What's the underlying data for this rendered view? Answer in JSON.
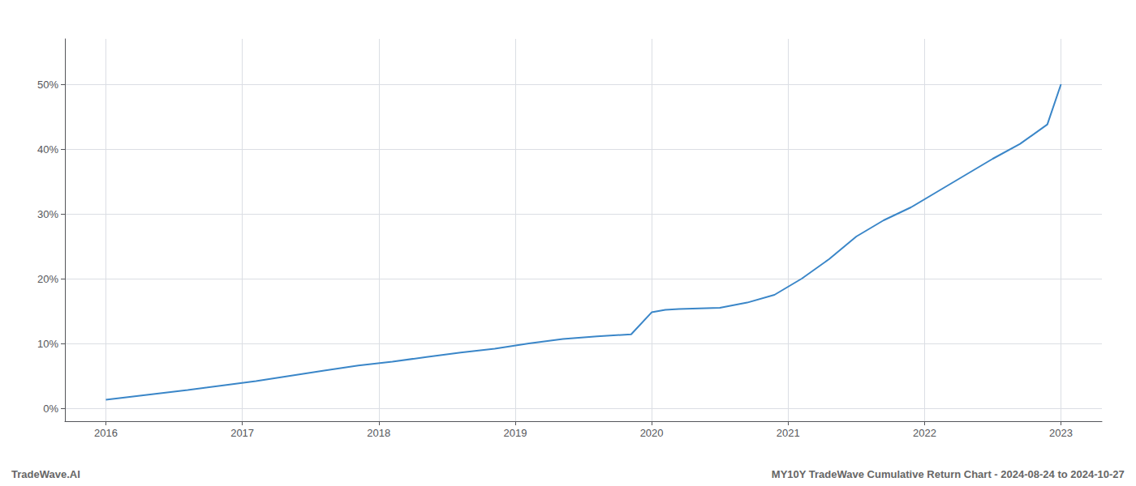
{
  "chart_data": {
    "type": "line",
    "x": [
      2016.0,
      2016.15,
      2016.35,
      2016.6,
      2016.85,
      2017.1,
      2017.35,
      2017.6,
      2017.85,
      2018.1,
      2018.35,
      2018.6,
      2018.85,
      2019.1,
      2019.35,
      2019.6,
      2019.85,
      2020.0,
      2020.1,
      2020.2,
      2020.35,
      2020.5,
      2020.7,
      2020.9,
      2021.1,
      2021.3,
      2021.5,
      2021.7,
      2021.9,
      2022.1,
      2022.3,
      2022.5,
      2022.7,
      2022.9,
      2023.0
    ],
    "values": [
      0.013,
      0.017,
      0.022,
      0.028,
      0.035,
      0.042,
      0.05,
      0.058,
      0.066,
      0.072,
      0.079,
      0.086,
      0.092,
      0.1,
      0.107,
      0.111,
      0.114,
      0.148,
      0.152,
      0.153,
      0.154,
      0.155,
      0.163,
      0.175,
      0.2,
      0.23,
      0.265,
      0.29,
      0.31,
      0.335,
      0.36,
      0.385,
      0.408,
      0.438,
      0.5
    ],
    "color": "#3a86c8",
    "xlim": [
      2015.7,
      2023.3
    ],
    "ylim": [
      -0.02,
      0.57
    ],
    "xticks": [
      2016,
      2017,
      2018,
      2019,
      2020,
      2021,
      2022,
      2023
    ],
    "yticks": [
      {
        "value": 0.0,
        "label": "0%"
      },
      {
        "value": 0.1,
        "label": "10%"
      },
      {
        "value": 0.2,
        "label": "20%"
      },
      {
        "value": 0.3,
        "label": "30%"
      },
      {
        "value": 0.4,
        "label": "40%"
      },
      {
        "value": 0.5,
        "label": "50%"
      }
    ],
    "grid": true,
    "annotations": [
      "TradeWave.AI",
      "MY10Y TradeWave Cumulative Return Chart - 2024-08-24 to 2024-10-27"
    ]
  }
}
